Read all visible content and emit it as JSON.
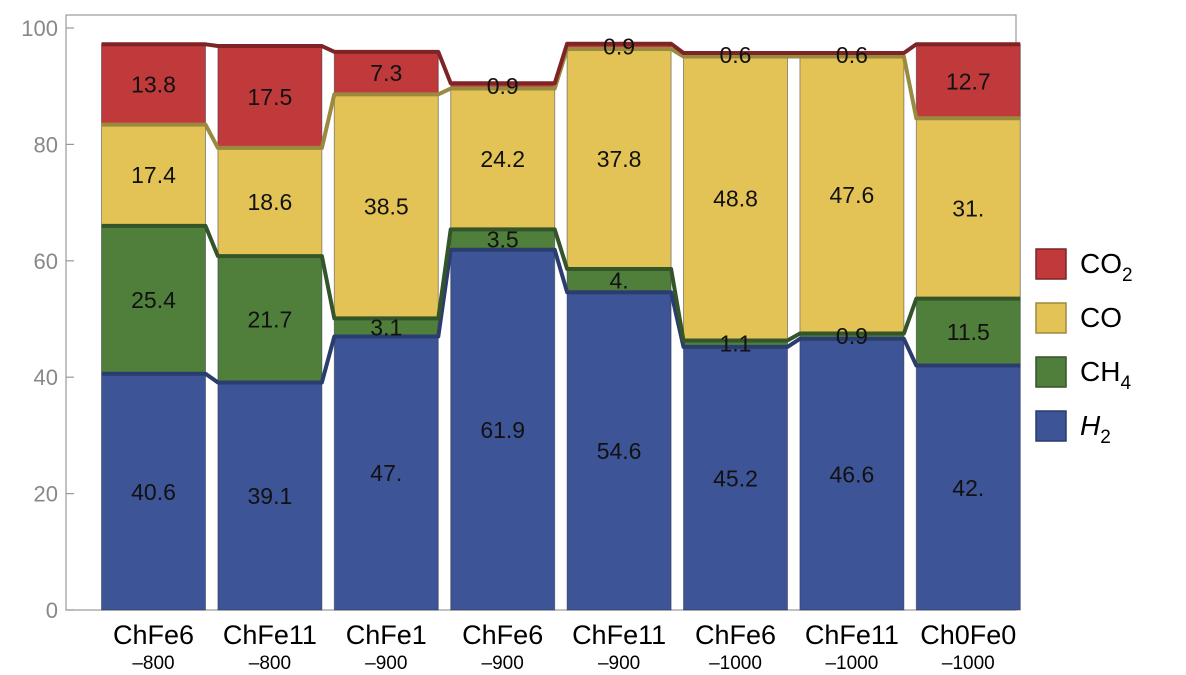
{
  "chart_data": {
    "type": "bar",
    "stacked": true,
    "categories": [
      {
        "name": "ChFe6",
        "sub": "–800"
      },
      {
        "name": "ChFe11",
        "sub": "–800"
      },
      {
        "name": "ChFe1",
        "sub": "–900"
      },
      {
        "name": "ChFe6",
        "sub": "–900"
      },
      {
        "name": "ChFe11",
        "sub": "–900"
      },
      {
        "name": "ChFe6",
        "sub": "–1000"
      },
      {
        "name": "ChFe11",
        "sub": "–1000"
      },
      {
        "name": "Ch0Fe0",
        "sub": "–1000"
      }
    ],
    "series": [
      {
        "name": "H2",
        "legend_main": "H",
        "legend_sub": "2",
        "italic": true,
        "color": "#3d5496",
        "edge": "#2b3d6e",
        "values": [
          40.6,
          39.1,
          47.0,
          61.9,
          54.6,
          45.2,
          46.6,
          42.0
        ],
        "labels": [
          "40.6",
          "39.1",
          "47.",
          "61.9",
          "54.6",
          "45.2",
          "46.6",
          "42."
        ]
      },
      {
        "name": "CH4",
        "legend_main": "CH",
        "legend_sub": "4",
        "italic": false,
        "color": "#4f7f3b",
        "edge": "#34542a",
        "values": [
          25.4,
          21.7,
          3.1,
          3.5,
          4.0,
          1.1,
          0.9,
          11.5
        ],
        "labels": [
          "25.4",
          "21.7",
          "3.1",
          "3.5",
          "4.",
          "1.1",
          "0.9",
          "11.5"
        ]
      },
      {
        "name": "CO",
        "legend_main": "CO",
        "legend_sub": "",
        "italic": false,
        "color": "#e3c355",
        "edge": "#9a8a40",
        "values": [
          17.4,
          18.6,
          38.5,
          24.2,
          37.8,
          48.8,
          47.6,
          31.0
        ],
        "labels": [
          "17.4",
          "18.6",
          "38.5",
          "24.2",
          "37.8",
          "48.8",
          "47.6",
          "31."
        ]
      },
      {
        "name": "CO2",
        "legend_main": "CO",
        "legend_sub": "2",
        "italic": false,
        "color": "#c0393b",
        "edge": "#7e2426",
        "values": [
          13.8,
          17.5,
          7.3,
          0.9,
          0.9,
          0.6,
          0.6,
          12.7
        ],
        "labels": [
          "13.8",
          "17.5",
          "7.3",
          "0.9",
          "0.9",
          "0.6",
          "0.6",
          "12.7"
        ]
      }
    ],
    "ylim": [
      0,
      102
    ],
    "yticks": [
      "0",
      "20",
      "40",
      "60",
      "80",
      "100"
    ],
    "legend_position": "right",
    "title": "",
    "xlabel": "",
    "ylabel": ""
  }
}
